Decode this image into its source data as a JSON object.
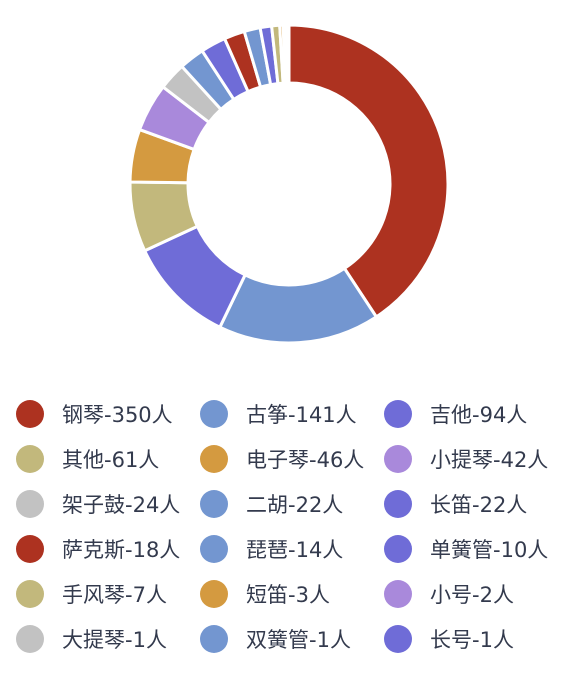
{
  "chart_data": {
    "type": "pie",
    "variant": "donut",
    "legend_position": "bottom",
    "series": [
      {
        "label": "钢琴-350人",
        "category": "钢琴",
        "value": 350,
        "color": "#ad3220"
      },
      {
        "label": "古筝-141人",
        "category": "古筝",
        "value": 141,
        "color": "#7396d0"
      },
      {
        "label": "吉他-94人",
        "category": "吉他",
        "value": 94,
        "color": "#6f6cd7"
      },
      {
        "label": "其他-61人",
        "category": "其他",
        "value": 61,
        "color": "#c2b87c"
      },
      {
        "label": "电子琴-46人",
        "category": "电子琴",
        "value": 46,
        "color": "#d49a40"
      },
      {
        "label": "小提琴-42人",
        "category": "小提琴",
        "value": 42,
        "color": "#a989db"
      },
      {
        "label": "架子鼓-24人",
        "category": "架子鼓",
        "value": 24,
        "color": "#c2c2c2"
      },
      {
        "label": "二胡-22人",
        "category": "二胡",
        "value": 22,
        "color": "#7396d0"
      },
      {
        "label": "长笛-22人",
        "category": "长笛",
        "value": 22,
        "color": "#6f6cd7"
      },
      {
        "label": "萨克斯-18人",
        "category": "萨克斯",
        "value": 18,
        "color": "#ad3220"
      },
      {
        "label": "琵琶-14人",
        "category": "琵琶",
        "value": 14,
        "color": "#7396d0"
      },
      {
        "label": "单簧管-10人",
        "category": "单簧管",
        "value": 10,
        "color": "#6f6cd7"
      },
      {
        "label": "手风琴-7人",
        "category": "手风琴",
        "value": 7,
        "color": "#c2b87c"
      },
      {
        "label": "短笛-3人",
        "category": "短笛",
        "value": 3,
        "color": "#d49a40"
      },
      {
        "label": "小号-2人",
        "category": "小号",
        "value": 2,
        "color": "#a989db"
      },
      {
        "label": "大提琴-1人",
        "category": "大提琴",
        "value": 1,
        "color": "#c2c2c2"
      },
      {
        "label": "双簧管-1人",
        "category": "双簧管",
        "value": 1,
        "color": "#7396d0"
      },
      {
        "label": "长号-1人",
        "category": "长号",
        "value": 1,
        "color": "#6f6cd7"
      }
    ]
  }
}
